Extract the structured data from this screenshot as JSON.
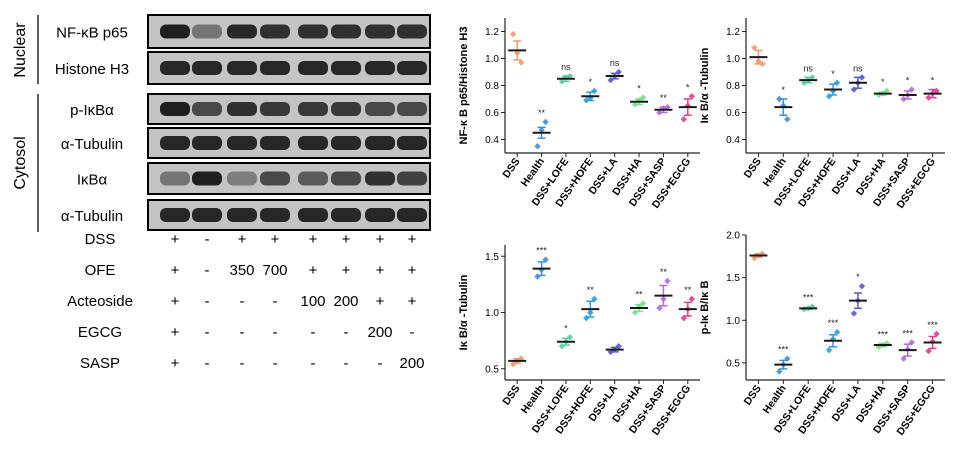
{
  "blot": {
    "compartments": [
      {
        "label": "Nuclear",
        "rows": [
          "NF-κB p65",
          "Histone H3"
        ]
      },
      {
        "label": "Cytosol",
        "rows": [
          "p-IκBα",
          "α-Tubulin",
          "IκBα",
          "α-Tubulin"
        ]
      }
    ],
    "treatments": [
      {
        "name": "DSS",
        "values": [
          "+",
          "-",
          "+",
          "+",
          "+",
          "+",
          "+",
          "+"
        ]
      },
      {
        "name": "OFE",
        "values": [
          "+",
          "-",
          "350",
          "700",
          "+",
          "+",
          "+",
          "+"
        ]
      },
      {
        "name": "Acteoside",
        "values": [
          "+",
          "-",
          "-",
          "-",
          "100",
          "200",
          "+",
          "+"
        ]
      },
      {
        "name": "EGCG",
        "values": [
          "+",
          "-",
          "-",
          "-",
          "-",
          "-",
          "200",
          "-"
        ]
      },
      {
        "name": "SASP",
        "values": [
          "+",
          "-",
          "-",
          "-",
          "-",
          "-",
          "-",
          "200"
        ]
      }
    ],
    "colors": {
      "band": "#161616",
      "background": "#c4c4c4"
    }
  },
  "chart_data": [
    {
      "type": "scatter",
      "ylabel": "NF-κ B p65/Histone H3",
      "categories": [
        "DSS",
        "Health",
        "DSS+LOFE",
        "DSS+HOFE",
        "DSS+LA",
        "DSS+HA",
        "DSS+SASP",
        "DSS+EGCG"
      ],
      "means": [
        1.06,
        0.45,
        0.85,
        0.72,
        0.87,
        0.68,
        0.62,
        0.64
      ],
      "errors": [
        0.07,
        0.04,
        0.02,
        0.03,
        0.02,
        0.02,
        0.02,
        0.06
      ],
      "points": [
        [
          1.18,
          1.04,
          0.97
        ],
        [
          0.35,
          0.47,
          0.53
        ],
        [
          0.83,
          0.86,
          0.87
        ],
        [
          0.69,
          0.71,
          0.76
        ],
        [
          0.84,
          0.87,
          0.9
        ],
        [
          0.66,
          0.69,
          0.71
        ],
        [
          0.6,
          0.63,
          0.64
        ],
        [
          0.55,
          0.65,
          0.72
        ]
      ],
      "significance": [
        "",
        "**",
        "ns",
        "*",
        "ns",
        "*",
        "**",
        "*"
      ],
      "ylim": [
        0.3,
        1.3
      ],
      "yticks": [
        "0.4",
        "0.6",
        "0.8",
        "1.0",
        "1.2"
      ]
    },
    {
      "type": "scatter",
      "ylabel": "Iκ B/α -Tubulin",
      "categories": [
        "DSS",
        "Health",
        "DSS+LOFE",
        "DSS+HOFE",
        "DSS+LA",
        "DSS+HA",
        "DSS+SASP",
        "DSS+EGCG"
      ],
      "means": [
        1.01,
        0.64,
        0.84,
        0.77,
        0.82,
        0.74,
        0.73,
        0.74
      ],
      "errors": [
        0.05,
        0.06,
        0.02,
        0.04,
        0.04,
        0.01,
        0.03,
        0.03
      ],
      "points": [
        [
          1.08,
          0.98,
          0.96
        ],
        [
          0.7,
          0.65,
          0.55
        ],
        [
          0.82,
          0.84,
          0.86
        ],
        [
          0.72,
          0.76,
          0.82
        ],
        [
          0.77,
          0.82,
          0.86
        ],
        [
          0.73,
          0.74,
          0.76
        ],
        [
          0.7,
          0.73,
          0.77
        ],
        [
          0.71,
          0.74,
          0.76
        ]
      ],
      "significance": [
        "",
        "*",
        "ns",
        "*",
        "ns",
        "*",
        "*",
        "*"
      ],
      "ylim": [
        0.3,
        1.3
      ],
      "yticks": [
        "0.4",
        "0.6",
        "0.8",
        "1.0",
        "1.2"
      ]
    },
    {
      "type": "scatter",
      "ylabel": "Iκ B/α -Tubulin",
      "categories": [
        "DSS",
        "Health",
        "DSS+LOFE",
        "DSS+HOFE",
        "DSS+LA",
        "DSS+HA",
        "DSS+SASP",
        "DSS+EGCG"
      ],
      "means": [
        0.57,
        1.39,
        0.74,
        1.03,
        0.67,
        1.04,
        1.15,
        1.03
      ],
      "errors": [
        0.02,
        0.06,
        0.03,
        0.07,
        0.02,
        0.03,
        0.09,
        0.06
      ],
      "points": [
        [
          0.54,
          0.57,
          0.59
        ],
        [
          1.32,
          1.38,
          1.47
        ],
        [
          0.7,
          0.74,
          0.78
        ],
        [
          0.95,
          1.0,
          1.12
        ],
        [
          0.65,
          0.67,
          0.7
        ],
        [
          1.0,
          1.05,
          1.08
        ],
        [
          1.04,
          1.12,
          1.28
        ],
        [
          0.95,
          1.03,
          1.12
        ]
      ],
      "significance": [
        "",
        "***",
        "*",
        "**",
        "",
        "**",
        "**",
        "**"
      ],
      "ylim": [
        0.4,
        1.6
      ],
      "yticks": [
        "0.5",
        "1.0",
        "1.5"
      ]
    },
    {
      "type": "scatter",
      "ylabel": "p-Iκ B/Iκ B",
      "categories": [
        "DSS",
        "Health",
        "DSS+LOFE",
        "DSS+HOFE",
        "DSS+LA",
        "DSS+HA",
        "DSS+SASP",
        "DSS+EGCG"
      ],
      "means": [
        1.76,
        0.48,
        1.14,
        0.76,
        1.23,
        0.71,
        0.65,
        0.74
      ],
      "errors": [
        0.02,
        0.05,
        0.01,
        0.07,
        0.09,
        0.02,
        0.07,
        0.07
      ],
      "points": [
        [
          1.73,
          1.76,
          1.78
        ],
        [
          0.4,
          0.48,
          0.55
        ],
        [
          1.13,
          1.14,
          1.16
        ],
        [
          0.65,
          0.78,
          0.86
        ],
        [
          1.08,
          1.23,
          1.4
        ],
        [
          0.69,
          0.71,
          0.73
        ],
        [
          0.55,
          0.66,
          0.74
        ],
        [
          0.64,
          0.75,
          0.84
        ]
      ],
      "significance": [
        "",
        "***",
        "***",
        "***",
        "*",
        "***",
        "***",
        "***"
      ],
      "ylim": [
        0.3,
        2.0
      ],
      "yticks": [
        "0.5",
        "1.0",
        "1.5",
        "2.0"
      ]
    }
  ],
  "colors": [
    "#ef9a6e",
    "#3f8fd6",
    "#5ccaa0",
    "#2b9ed8",
    "#5a58c8",
    "#78df8c",
    "#b36ad8",
    "#e33c8c"
  ]
}
